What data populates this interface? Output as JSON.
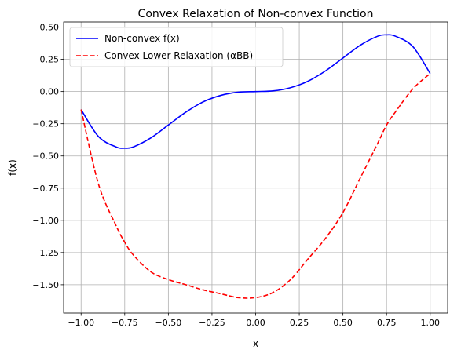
{
  "chart_data": {
    "type": "line",
    "title": "Convex Relaxation of Non-convex Function",
    "xlabel": "x",
    "ylabel": "f(x)",
    "xlim": [
      -1.1,
      1.1
    ],
    "ylim": [
      -1.72,
      0.54
    ],
    "xticks": [
      -1.0,
      -0.75,
      -0.5,
      -0.25,
      0.0,
      0.25,
      0.5,
      0.75,
      1.0
    ],
    "xtick_labels": [
      "−1.00",
      "−0.75",
      "−0.50",
      "−0.25",
      "0.00",
      "0.25",
      "0.50",
      "0.75",
      "1.00"
    ],
    "yticks": [
      0.5,
      0.25,
      0.0,
      -0.25,
      -0.5,
      -0.75,
      -1.0,
      -1.25,
      -1.5
    ],
    "ytick_labels": [
      "0.50",
      "0.25",
      "0.00",
      "−0.25",
      "−0.50",
      "−0.75",
      "−1.00",
      "−1.25",
      "−1.50"
    ],
    "grid": true,
    "legend_position": "upper-left",
    "series": [
      {
        "name": "Non-convex f(x)",
        "color": "#0000ff",
        "linestyle": "solid",
        "x": [
          -1.0,
          -0.9,
          -0.8,
          -0.75,
          -0.7,
          -0.6,
          -0.5,
          -0.4,
          -0.3,
          -0.2,
          -0.1,
          0.0,
          0.1,
          0.2,
          0.3,
          0.4,
          0.5,
          0.6,
          0.7,
          0.75,
          0.8,
          0.9,
          1.0
        ],
        "y": [
          -0.14,
          -0.35,
          -0.43,
          -0.44,
          -0.43,
          -0.36,
          -0.26,
          -0.16,
          -0.08,
          -0.03,
          -0.005,
          0.0,
          0.005,
          0.03,
          0.08,
          0.16,
          0.26,
          0.36,
          0.43,
          0.44,
          0.43,
          0.35,
          0.14
        ]
      },
      {
        "name": "Convex Lower Relaxation (αBB)",
        "color": "#ff0000",
        "linestyle": "dashed",
        "x": [
          -1.0,
          -0.9,
          -0.8,
          -0.75,
          -0.7,
          -0.6,
          -0.5,
          -0.4,
          -0.3,
          -0.2,
          -0.1,
          0.0,
          0.1,
          0.2,
          0.3,
          0.4,
          0.5,
          0.6,
          0.7,
          0.75,
          0.8,
          0.9,
          1.0
        ],
        "y": [
          -0.14,
          -0.72,
          -1.04,
          -1.17,
          -1.27,
          -1.4,
          -1.46,
          -1.5,
          -1.54,
          -1.57,
          -1.6,
          -1.6,
          -1.56,
          -1.46,
          -1.3,
          -1.14,
          -0.94,
          -0.67,
          -0.4,
          -0.26,
          -0.16,
          0.02,
          0.14
        ]
      }
    ]
  }
}
